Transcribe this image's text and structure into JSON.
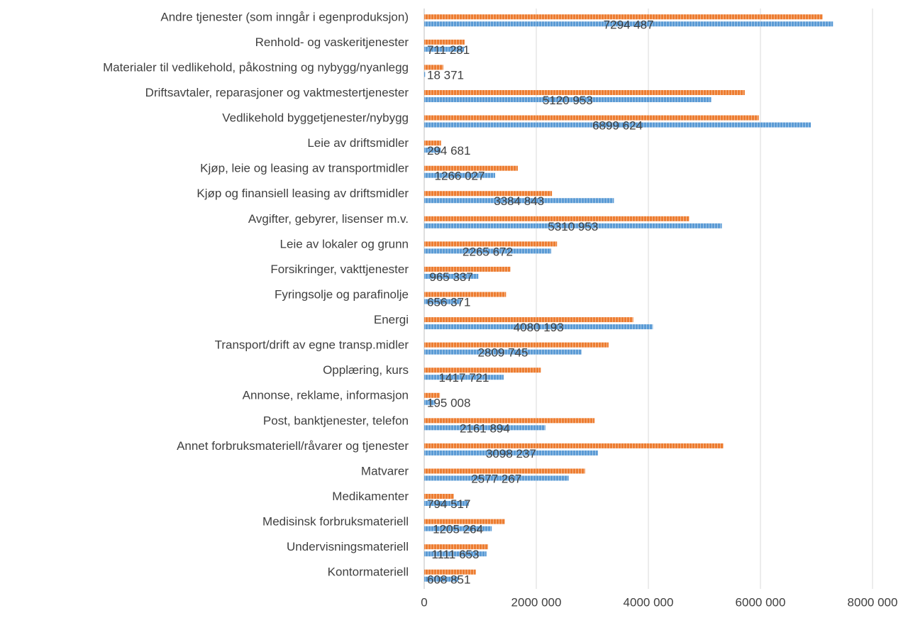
{
  "chart_data": {
    "type": "hbar",
    "categories": [
      "Andre tjenester (som inngår i egenproduksjon)",
      "Renhold- og vaskeritjenester",
      "Materialer til vedlikehold, påkostning og nybygg/nyanlegg",
      "Driftsavtaler, reparasjoner og vaktmestertjenester",
      "Vedlikehold byggetjenester/nybygg",
      "Leie av driftsmidler",
      "Kjøp, leie og leasing av transportmidler",
      "Kjøp og finansiell leasing av driftsmidler",
      "Avgifter, gebyrer, lisenser m.v.",
      "Leie av lokaler og grunn",
      "Forsikringer, vakttjenester",
      "Fyringsolje og parafinolje",
      "Energi",
      "Transport/drift av egne transp.midler",
      "Opplæring, kurs",
      "Annonse, reklame, informasjon",
      "Post, banktjenester, telefon",
      "Annet forbruksmateriell/råvarer og tjenester",
      "Matvarer",
      "Medikamenter",
      "Medisinsk forbruksmateriell",
      "Undervisningsmateriell",
      "Kontormateriell"
    ],
    "series": [
      {
        "color": "#ed7d31",
        "values": [
          7110000,
          720000,
          340000,
          5720000,
          5970000,
          300000,
          1670000,
          2280000,
          4730000,
          2370000,
          1540000,
          1460000,
          3730000,
          3290000,
          2080000,
          280000,
          3040000,
          5340000,
          2870000,
          530000,
          1440000,
          1140000,
          920000
        ]
      },
      {
        "color": "#5b9bd5",
        "values": [
          7294487,
          711281,
          18371,
          5120953,
          6899624,
          294681,
          1266027,
          3384843,
          5310953,
          2265672,
          965337,
          656371,
          4080193,
          2809745,
          1417721,
          195008,
          2161894,
          3098237,
          2577267,
          794517,
          1205264,
          1111653,
          608851
        ],
        "value_labels": [
          "7294 487",
          "711 281",
          "18 371",
          "5120 953",
          "6899 624",
          "294 681",
          "1266 027",
          "3384 843",
          "5310 953",
          "2265 672",
          "965 337",
          "656 371",
          "4080 193",
          "2809 745",
          "1417 721",
          "195 008",
          "2161 894",
          "3098 237",
          "2577 267",
          "794 517",
          "1205 264",
          "1111 653",
          "608 851"
        ]
      }
    ],
    "xlim": [
      0,
      8000000
    ],
    "xticks": [
      0,
      {
        "value": 2000000,
        "label": "2000 000"
      },
      {
        "value": 4000000,
        "label": "4000 000"
      },
      {
        "value": 6000000,
        "label": "6000 000"
      },
      {
        "value": 8000000,
        "label": "8000 000"
      }
    ],
    "grid": true
  }
}
